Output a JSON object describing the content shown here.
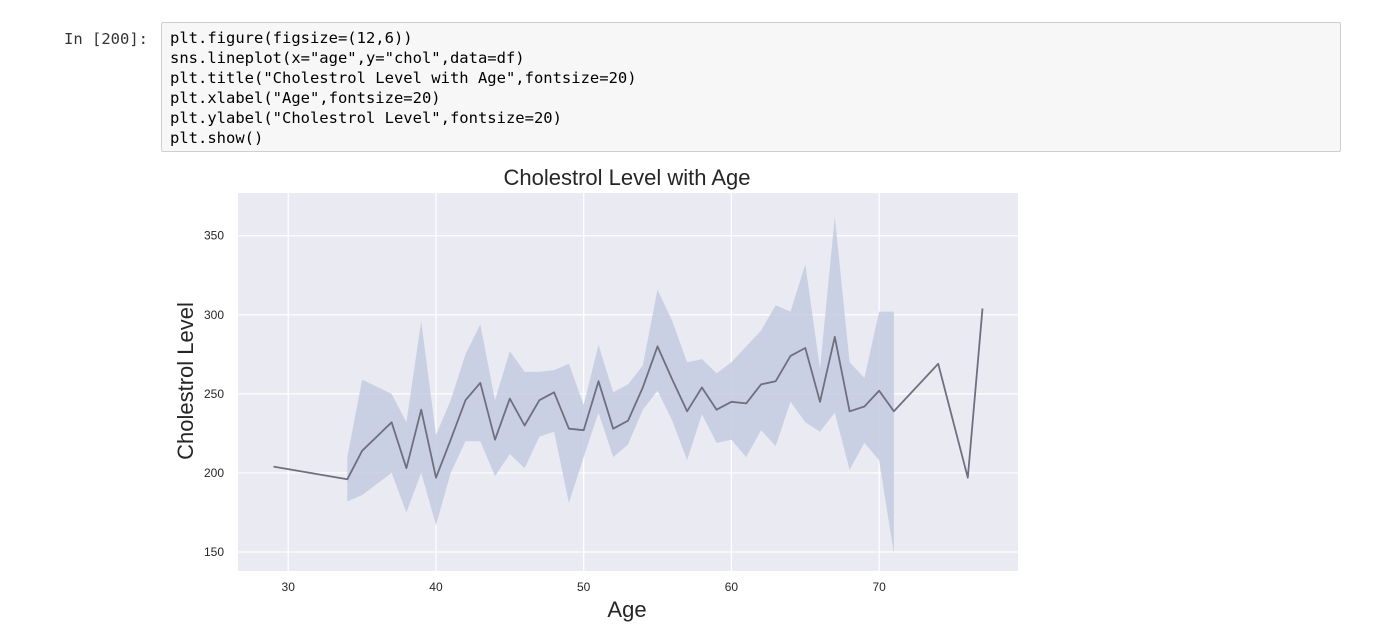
{
  "cell": {
    "prompt": "In [200]:",
    "code_lines": [
      "plt.figure(figsize=(12,6))",
      "sns.lineplot(x=\"age\",y=\"chol\",data=df)",
      "plt.title(\"Cholestrol Level with Age\",fontsize=20)",
      "plt.xlabel(\"Age\",fontsize=20)",
      "plt.ylabel(\"Cholestrol Level\",fontsize=20)",
      "plt.show()"
    ]
  },
  "colors": {
    "plot_bg": "#eaeaf2",
    "grid": "#ffffff",
    "line": "#6f6f80",
    "band": "#c4cbe0",
    "text": "#262626"
  },
  "chart_data": {
    "type": "line",
    "title": "Cholestrol Level with Age",
    "xlabel": "Age",
    "ylabel": "Cholestrol Level",
    "xlim": [
      26.6,
      79.4
    ],
    "ylim": [
      138,
      377
    ],
    "xticks": [
      30,
      40,
      50,
      60,
      70
    ],
    "yticks": [
      150,
      200,
      250,
      300,
      350
    ],
    "grid": true,
    "series": [
      {
        "x": [
          29,
          34,
          35,
          37,
          38,
          39,
          40,
          41,
          42,
          43,
          44,
          45,
          46,
          47,
          48,
          49,
          50,
          51,
          52,
          53,
          54,
          55,
          56,
          57,
          58,
          59,
          60,
          61,
          62,
          63,
          64,
          65,
          66,
          67,
          68,
          69,
          70,
          71,
          74,
          76,
          77
        ],
        "y": [
          204,
          196,
          214,
          232,
          203,
          240,
          197,
          221,
          246,
          257,
          221,
          247,
          230,
          246,
          251,
          228,
          227,
          258,
          228,
          233,
          254,
          280,
          259,
          239,
          254,
          240,
          245,
          244,
          256,
          258,
          274,
          279,
          245,
          286,
          239,
          242,
          252,
          239,
          269,
          197,
          304
        ],
        "ci_lower": [
          null,
          182,
          186,
          200,
          175,
          200,
          167,
          200,
          220,
          220,
          198,
          212,
          203,
          223,
          226,
          181,
          210,
          238,
          210,
          218,
          240,
          252,
          233,
          208,
          237,
          219,
          221,
          210,
          227,
          217,
          245,
          232,
          226,
          238,
          202,
          219,
          208,
          149,
          null,
          null,
          null
        ],
        "ci_upper": [
          null,
          210,
          259,
          250,
          232,
          296,
          224,
          246,
          275,
          294,
          246,
          277,
          264,
          264,
          265,
          269,
          243,
          281,
          251,
          256,
          268,
          316,
          296,
          270,
          272,
          263,
          270,
          280,
          290,
          306,
          302,
          332,
          266,
          362,
          270,
          260,
          302,
          302,
          null,
          null,
          null
        ]
      }
    ]
  }
}
